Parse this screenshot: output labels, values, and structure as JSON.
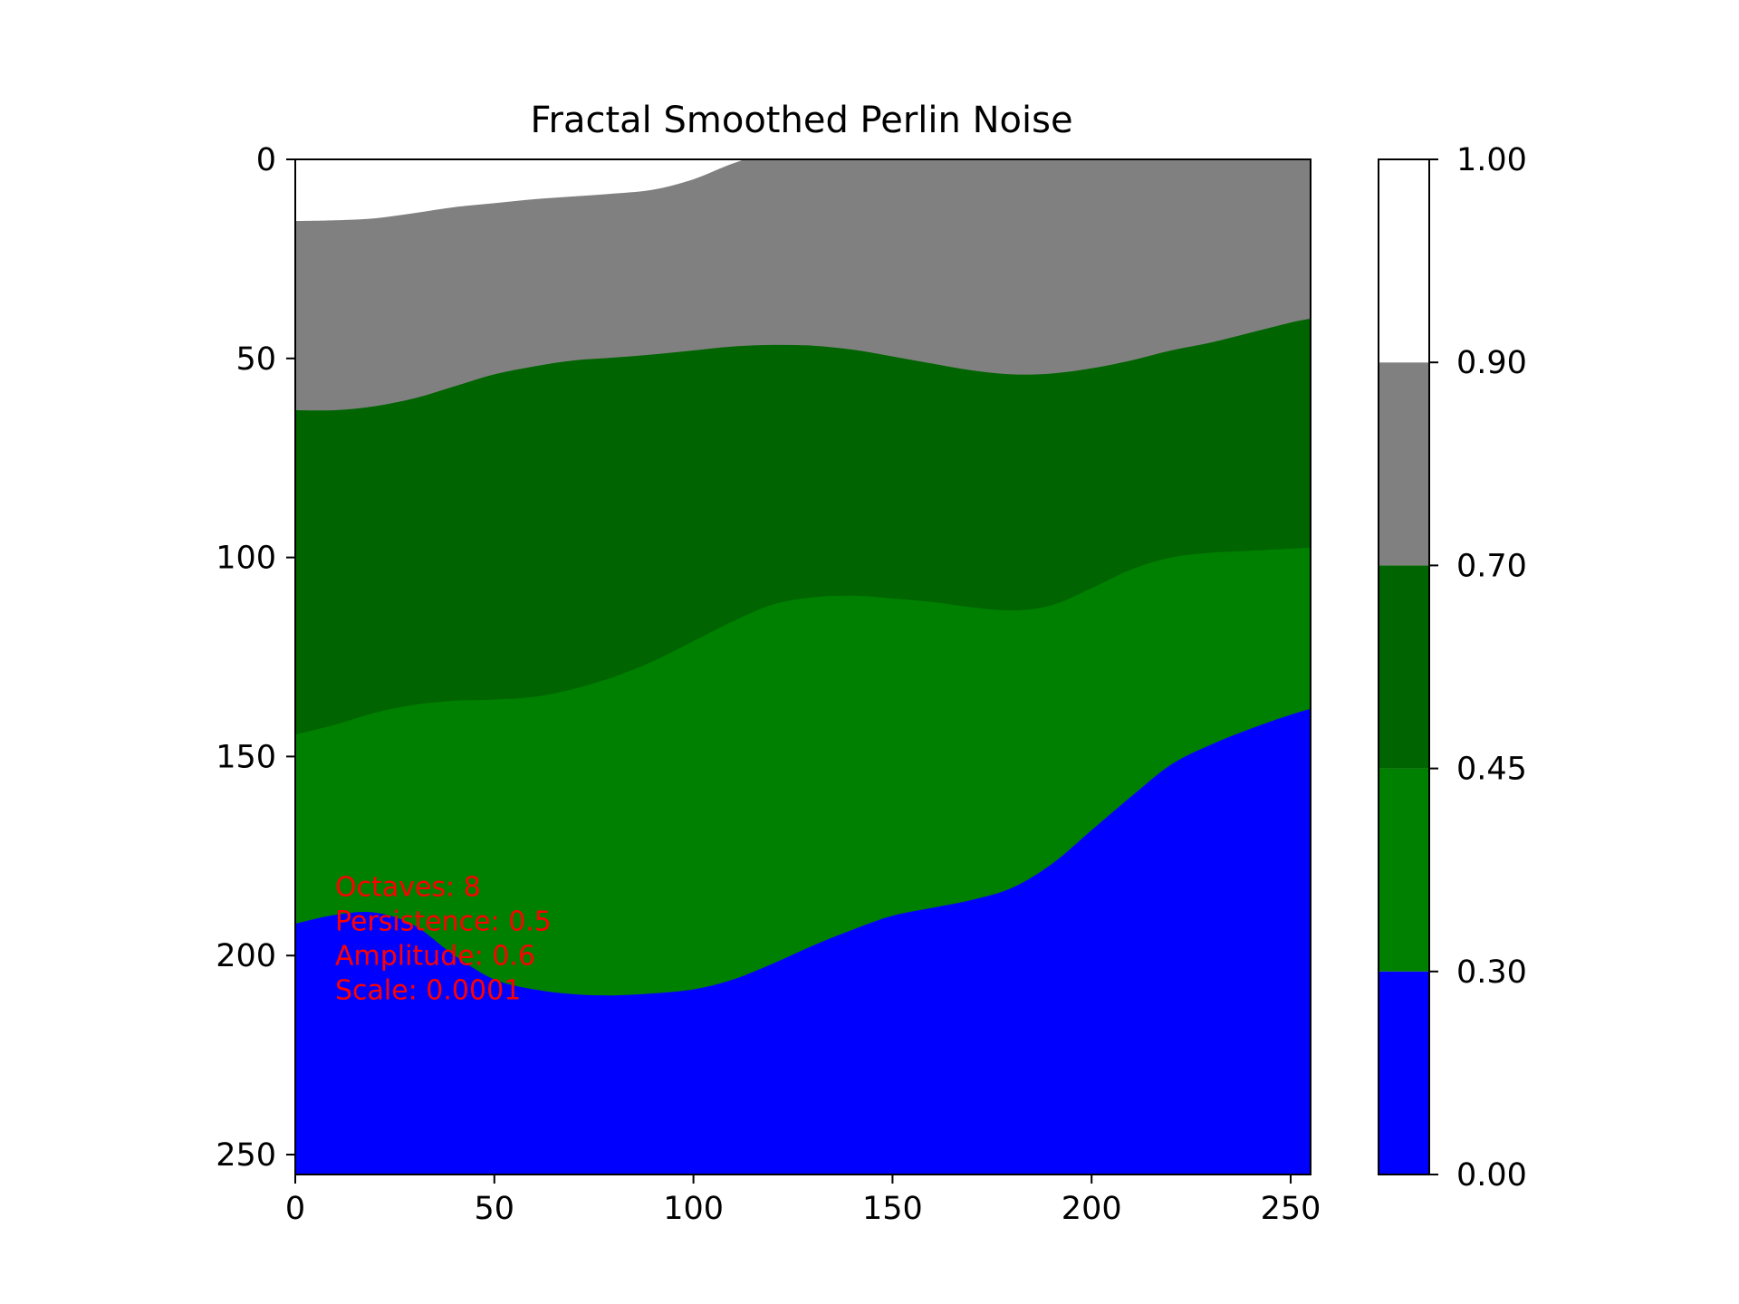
{
  "chart_data": {
    "type": "heatmap",
    "title": "Fractal Smoothed Perlin Noise",
    "xlabel": "",
    "ylabel": "",
    "xlim": [
      0,
      255
    ],
    "ylim": [
      255,
      0
    ],
    "x_ticks": [
      0,
      50,
      100,
      150,
      200,
      250
    ],
    "y_ticks": [
      0,
      50,
      100,
      150,
      200,
      250
    ],
    "colorbar": {
      "boundaries": [
        0.0,
        0.3,
        0.45,
        0.7,
        0.9,
        1.0
      ],
      "tick_labels": [
        "0.00",
        "0.30",
        "0.45",
        "0.70",
        "0.90",
        "1.00"
      ],
      "colors": [
        "#0000ff",
        "#008000",
        "#006400",
        "#808080",
        "#ffffff"
      ]
    },
    "bands": [
      {
        "color": "#ffffff",
        "range": [
          0.9,
          1.0
        ]
      },
      {
        "color": "#808080",
        "range": [
          0.7,
          0.9
        ]
      },
      {
        "color": "#006400",
        "range": [
          0.45,
          0.7
        ]
      },
      {
        "color": "#008000",
        "range": [
          0.3,
          0.45
        ]
      },
      {
        "color": "#0000ff",
        "range": [
          0.0,
          0.3
        ]
      }
    ],
    "boundaries_rows": {
      "x": [
        0,
        10,
        20,
        30,
        40,
        50,
        60,
        70,
        80,
        90,
        100,
        110,
        120,
        130,
        140,
        150,
        160,
        170,
        180,
        190,
        200,
        210,
        220,
        230,
        240,
        250,
        255
      ],
      "white_grey": [
        15.5,
        15.3,
        14.8,
        13.5,
        12.0,
        11.0,
        10.0,
        9.3,
        8.6,
        7.6,
        5.0,
        1.0,
        -2,
        -2,
        -2,
        -2,
        -2,
        -2,
        -2,
        -2,
        -2,
        -2,
        -2,
        -2,
        -2,
        -2,
        -2
      ],
      "grey_darkgreen": [
        63.0,
        63.0,
        62.0,
        60.0,
        57.0,
        54.0,
        52.0,
        50.5,
        49.8,
        49.0,
        48.0,
        47.0,
        46.6,
        46.8,
        47.8,
        49.5,
        51.3,
        53.0,
        54.0,
        53.8,
        52.5,
        50.5,
        48.0,
        46.0,
        43.5,
        41.0,
        40.0
      ],
      "darkgreen_green": [
        144.5,
        142.0,
        139.0,
        137.0,
        136.0,
        135.7,
        135.0,
        133.0,
        130.0,
        126.0,
        121.0,
        116.0,
        111.8,
        110.0,
        109.6,
        110.3,
        111.2,
        112.5,
        113.3,
        112.0,
        107.7,
        103.0,
        100.0,
        98.8,
        98.3,
        97.8,
        97.5
      ],
      "green_blue": [
        192.0,
        189.8,
        189.2,
        192.5,
        200.0,
        206.0,
        208.5,
        209.7,
        210.0,
        209.5,
        208.5,
        206.0,
        202.0,
        197.5,
        193.5,
        190.0,
        188.0,
        186.0,
        183.0,
        177.0,
        168.5,
        160.0,
        152.0,
        147.0,
        143.0,
        139.5,
        138.0
      ]
    },
    "annotations": [
      "Octaves: 8",
      "Persistence: 0.5",
      "Amplitude: 0.6",
      "Scale: 0.0001"
    ],
    "annotation_color": "#ff0000",
    "annotation_anchor_data": [
      10,
      185
    ]
  }
}
